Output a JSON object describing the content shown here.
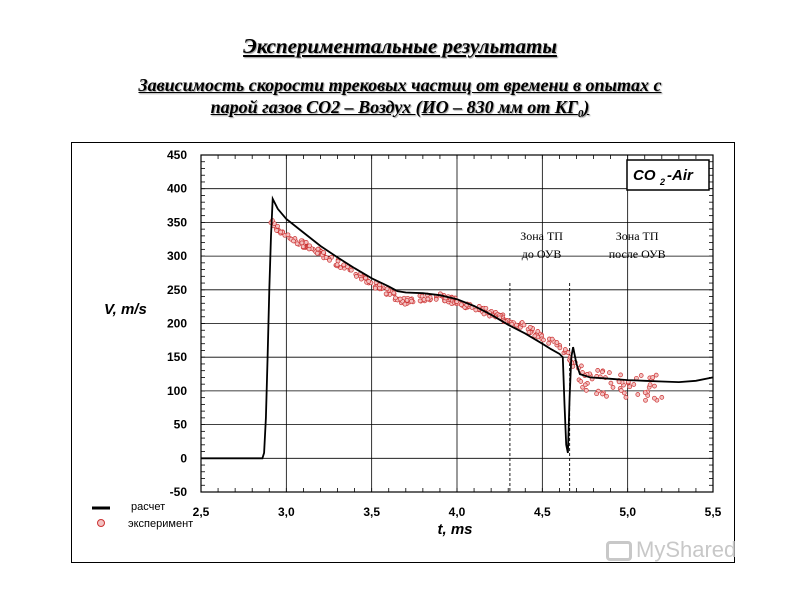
{
  "header": {
    "title": "Экспериментальные результаты",
    "subtitle_line1": "Зависимость скорости трековых частиц от времени в опытах с",
    "subtitle_line2_pre": "парой газов СО2 – Воздух (ИО – 830 мм от КГ",
    "subtitle_line2_sub": "0",
    "subtitle_line2_post": ")"
  },
  "chart_data": {
    "type": "line",
    "title": "",
    "xlabel": "t, ms",
    "ylabel": "V, m/s",
    "xlim": [
      2.5,
      5.5
    ],
    "ylim": [
      -50,
      450
    ],
    "x_ticks": [
      2.5,
      3.0,
      3.5,
      4.0,
      4.5,
      5.0,
      5.5
    ],
    "x_tick_labels": [
      "2,5",
      "3,0",
      "3,5",
      "4,0",
      "4,5",
      "5,0",
      "5,5"
    ],
    "y_ticks": [
      -50,
      0,
      50,
      100,
      150,
      200,
      250,
      300,
      350,
      400,
      450
    ],
    "y_tick_labels": [
      "-50",
      "0",
      "50",
      "100",
      "150",
      "200",
      "250",
      "300",
      "350",
      "400",
      "450"
    ],
    "grid": true,
    "annotation_box": {
      "main": "CO",
      "sub": "2",
      "tail": "-Air"
    },
    "zone_lines_x": [
      4.31,
      4.66
    ],
    "zone_labels": [
      {
        "line1": "Зона ТП",
        "line2": "до ОУВ",
        "x": 4.32,
        "y": 300
      },
      {
        "line1": "Зона ТП",
        "line2": "после ОУВ",
        "x": 4.88,
        "y": 300
      }
    ],
    "legend": {
      "position": "bottom-left",
      "calc_label": "расчет",
      "exp_label": "эксперимент"
    },
    "series": [
      {
        "name": "расчет",
        "style": "line",
        "color": "#000000",
        "points": [
          [
            2.5,
            0
          ],
          [
            2.86,
            0
          ],
          [
            2.87,
            8
          ],
          [
            2.88,
            60
          ],
          [
            2.89,
            150
          ],
          [
            2.9,
            250
          ],
          [
            2.91,
            330
          ],
          [
            2.92,
            385
          ],
          [
            2.95,
            370
          ],
          [
            3.0,
            355
          ],
          [
            3.1,
            335
          ],
          [
            3.2,
            315
          ],
          [
            3.3,
            298
          ],
          [
            3.4,
            282
          ],
          [
            3.5,
            267
          ],
          [
            3.6,
            255
          ],
          [
            3.65,
            248
          ],
          [
            3.7,
            246
          ],
          [
            3.8,
            245
          ],
          [
            3.9,
            242
          ],
          [
            4.0,
            236
          ],
          [
            4.1,
            226
          ],
          [
            4.2,
            213
          ],
          [
            4.3,
            198
          ],
          [
            4.4,
            185
          ],
          [
            4.5,
            170
          ],
          [
            4.55,
            162
          ],
          [
            4.6,
            155
          ],
          [
            4.62,
            150
          ],
          [
            4.63,
            80
          ],
          [
            4.64,
            20
          ],
          [
            4.65,
            8
          ],
          [
            4.66,
            90
          ],
          [
            4.67,
            150
          ],
          [
            4.68,
            165
          ],
          [
            4.7,
            140
          ],
          [
            4.72,
            125
          ],
          [
            4.78,
            120
          ],
          [
            4.9,
            118
          ],
          [
            5.0,
            116
          ],
          [
            5.1,
            115
          ],
          [
            5.2,
            114
          ],
          [
            5.3,
            113
          ],
          [
            5.4,
            115
          ],
          [
            5.5,
            120
          ]
        ]
      },
      {
        "name": "эксперимент",
        "style": "markers",
        "color": "#cc3333",
        "trend": [
          [
            2.91,
            350
          ],
          [
            3.0,
            330
          ],
          [
            3.2,
            305
          ],
          [
            3.4,
            275
          ],
          [
            3.6,
            245
          ],
          [
            3.7,
            232
          ],
          [
            3.8,
            238
          ],
          [
            3.9,
            240
          ],
          [
            4.0,
            232
          ],
          [
            4.2,
            215
          ],
          [
            4.4,
            195
          ],
          [
            4.5,
            180
          ],
          [
            4.6,
            168
          ],
          [
            4.66,
            150
          ],
          [
            4.7,
            130
          ],
          [
            4.75,
            115
          ],
          [
            5.0,
            105
          ],
          [
            5.22,
            105
          ]
        ],
        "count": 340
      }
    ]
  },
  "watermark": {
    "text": "MyShared"
  }
}
